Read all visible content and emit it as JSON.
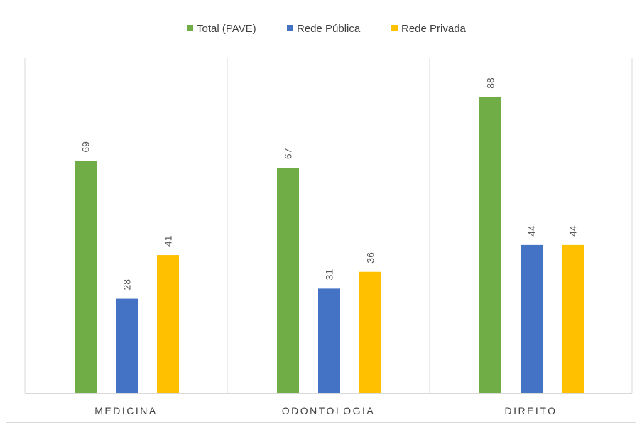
{
  "chart_data": {
    "type": "bar",
    "categories": [
      "MEDICINA",
      "ODONTOLOGIA",
      "DIREITO"
    ],
    "series": [
      {
        "name": "Total (PAVE)",
        "color": "#70ad47",
        "values": [
          69,
          67,
          88
        ]
      },
      {
        "name": "Rede Pública",
        "color": "#4472c4",
        "values": [
          28,
          31,
          44
        ]
      },
      {
        "name": "Rede Privada",
        "color": "#ffc000",
        "values": [
          41,
          36,
          44
        ]
      }
    ],
    "title": "",
    "xlabel": "",
    "ylabel": "",
    "ylim": [
      0,
      100
    ],
    "grid": "vertical category separators",
    "legend_position": "top",
    "data_labels": "rotated, above bars"
  }
}
